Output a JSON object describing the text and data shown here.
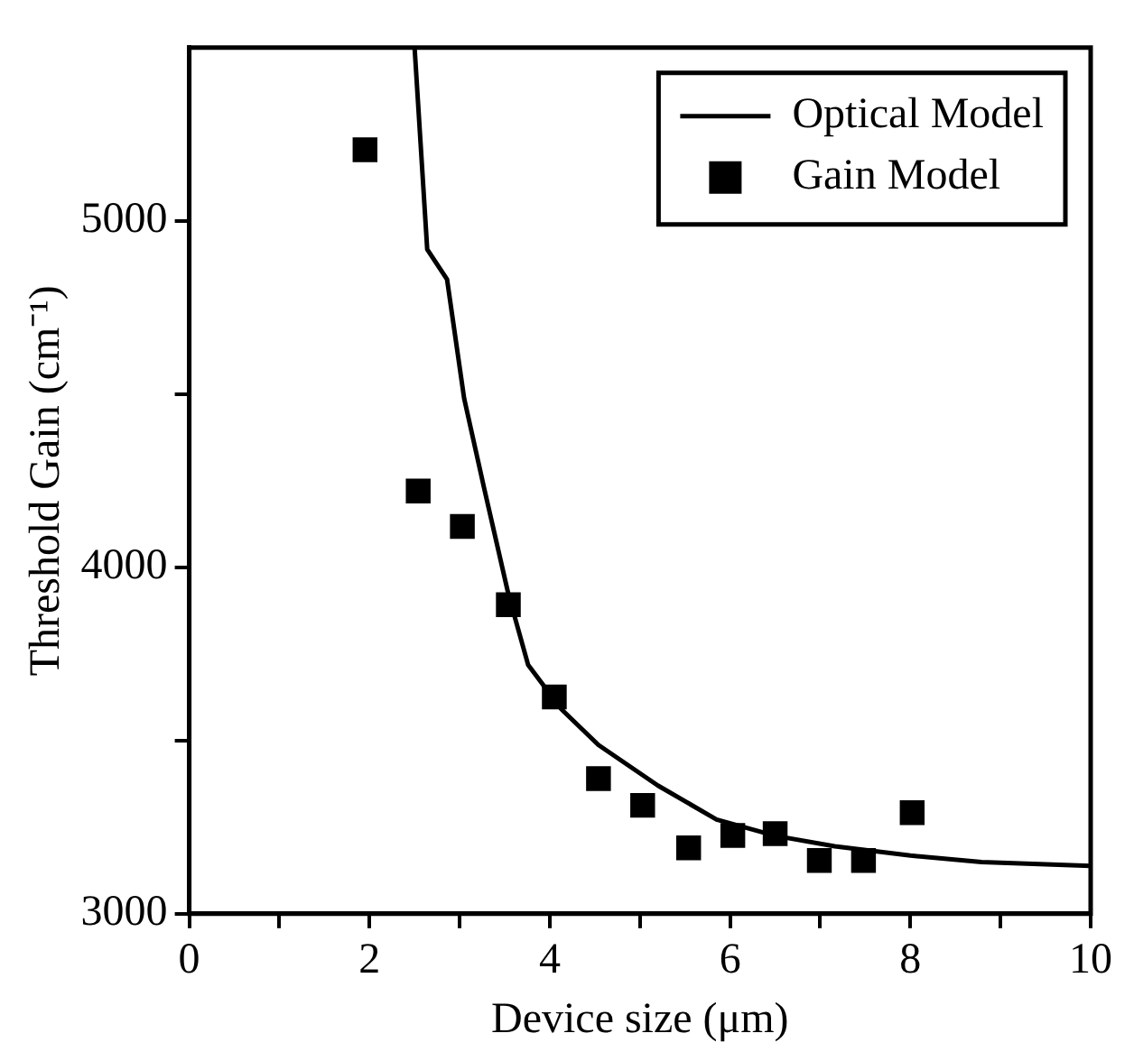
{
  "chart_data": {
    "type": "scatter",
    "xlabel": "Device size (μm)",
    "ylabel": "Threshold Gain (cm⁻¹)",
    "xlim": [
      0,
      10
    ],
    "xticks": [
      0,
      {
        "value": 1,
        "label": null
      },
      2,
      {
        "value": 3,
        "label": null
      },
      4,
      {
        "value": 5,
        "label": null
      },
      6,
      {
        "value": 7,
        "label": null
      },
      8,
      {
        "value": 9,
        "label": null
      },
      10
    ],
    "ylim": [
      3000,
      5500
    ],
    "yticks": [
      3000,
      {
        "value": 3500,
        "label": null
      },
      4000,
      {
        "value": 4500,
        "label": null
      },
      5000
    ],
    "grid": false,
    "legend": "top right",
    "series": [
      {
        "name": "Optical Model",
        "type": "line",
        "color": "#000000",
        "marker": "none",
        "line_style": "solid",
        "x": [
          2.5,
          2.64,
          2.86,
          3.05,
          3.27,
          3.54,
          3.76,
          4.13,
          4.54,
          5.2,
          5.85,
          6.5,
          7.16,
          8.0,
          8.79,
          10
        ],
        "values": [
          5500,
          4918,
          4831,
          4487,
          4230,
          3923,
          3718,
          3590,
          3487,
          3370,
          3272,
          3225,
          3195,
          3168,
          3149,
          3138
        ]
      },
      {
        "name": "Gain Model",
        "color": "#000000",
        "marker": "square",
        "x": [
          1.95,
          2.54,
          3.03,
          3.54,
          4.05,
          4.54,
          5.03,
          5.54,
          6.03,
          6.5,
          6.99,
          7.48,
          8.02
        ],
        "values": [
          5205,
          4220,
          4118,
          3892,
          3626,
          3390,
          3313,
          3190,
          3226,
          3231,
          3154,
          3154,
          3292
        ]
      }
    ]
  }
}
